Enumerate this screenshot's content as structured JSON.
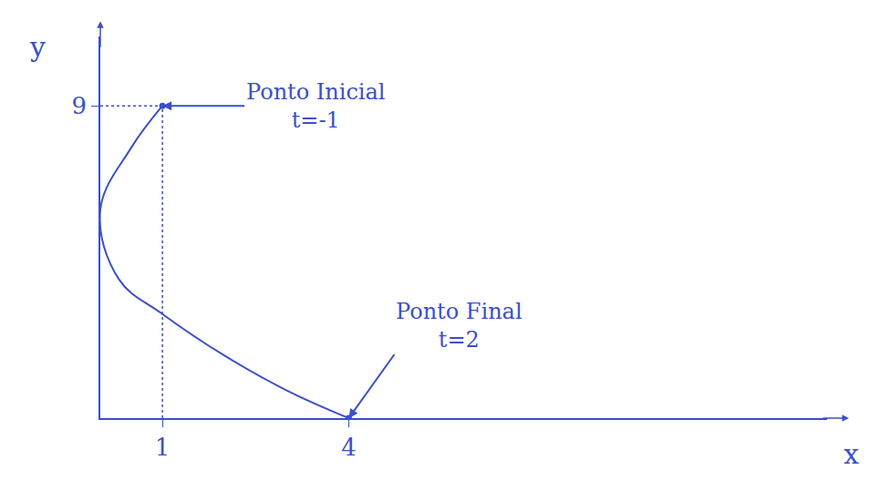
{
  "chart_data": {
    "type": "line",
    "x_label": "x",
    "y_label": "y",
    "series": [
      {
        "color": "#3b4fc8",
        "x": [
          1,
          0.5,
          0,
          0.3,
          1,
          2,
          3,
          4
        ],
        "values": [
          9,
          7.8,
          6,
          4,
          3,
          1.8,
          0.8,
          0
        ]
      }
    ],
    "xlim": [
      0,
      11.7
    ],
    "xticks": [
      1,
      4
    ],
    "ylim": [
      0,
      11
    ],
    "yticks": [
      9
    ],
    "grid": false,
    "annotations": [
      {
        "text": "Ponto Inicial",
        "subtext": "t=-1",
        "x": 1,
        "y": 9
      },
      {
        "text": "Ponto Final",
        "subtext": "t=2",
        "x": 4,
        "y": 0
      }
    ]
  }
}
